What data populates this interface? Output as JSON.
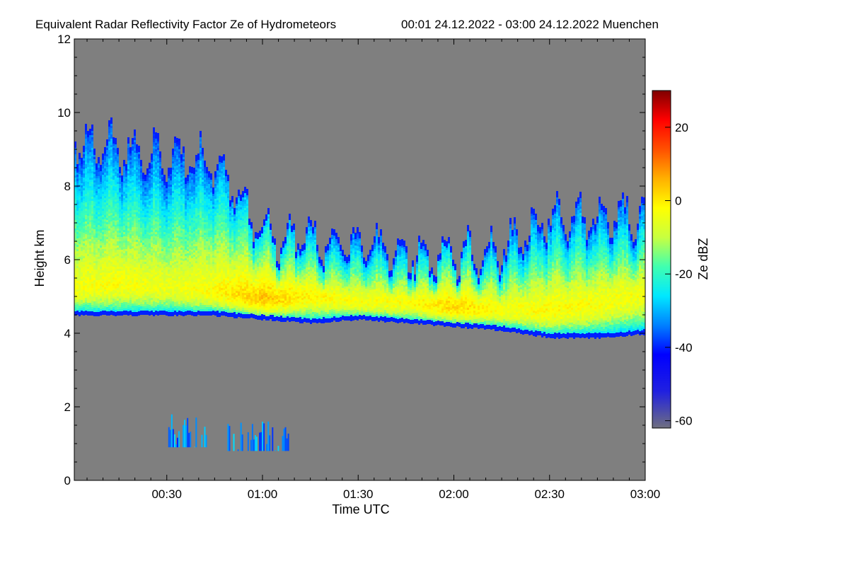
{
  "chart_data": {
    "type": "heatmap",
    "title": "Equivalent Radar Reflectivity Factor Ze of Hydrometeors",
    "subtitle": "00:01 24.12.2022 - 03:00 24.12.2022 Muenchen",
    "xlabel": "Time UTC",
    "ylabel": "Height km",
    "xlim_minutes": [
      1,
      180
    ],
    "ylim_km": [
      0,
      12
    ],
    "x_ticks": [
      {
        "minutes": 30,
        "label": "00:30"
      },
      {
        "minutes": 60,
        "label": "01:00"
      },
      {
        "minutes": 90,
        "label": "01:30"
      },
      {
        "minutes": 120,
        "label": "02:00"
      },
      {
        "minutes": 150,
        "label": "02:30"
      },
      {
        "minutes": 180,
        "label": "03:00"
      }
    ],
    "y_ticks": [
      {
        "km": 0,
        "label": "0"
      },
      {
        "km": 2,
        "label": "2"
      },
      {
        "km": 4,
        "label": "4"
      },
      {
        "km": 6,
        "label": "6"
      },
      {
        "km": 8,
        "label": "8"
      },
      {
        "km": 10,
        "label": "10"
      },
      {
        "km": 12,
        "label": "12"
      }
    ],
    "background_color": "#7f7f7f",
    "colorbar": {
      "label": "Ze dBZ",
      "range": [
        -62,
        30
      ],
      "ticks": [
        {
          "value": 20,
          "label": "20"
        },
        {
          "value": 0,
          "label": "0"
        },
        {
          "value": -20,
          "label": "-20"
        },
        {
          "value": -40,
          "label": "-40"
        },
        {
          "value": -60,
          "label": "-60"
        }
      ],
      "stops": [
        {
          "value": -62,
          "color": "#6f6f7f"
        },
        {
          "value": -52,
          "color": "#2020e0"
        },
        {
          "value": -42,
          "color": "#0000ff"
        },
        {
          "value": -34,
          "color": "#0080ff"
        },
        {
          "value": -26,
          "color": "#00e8ff"
        },
        {
          "value": -18,
          "color": "#40ffb0"
        },
        {
          "value": -10,
          "color": "#c8ff40"
        },
        {
          "value": -2,
          "color": "#ffff00"
        },
        {
          "value": 6,
          "color": "#ffb000"
        },
        {
          "value": 14,
          "color": "#ff5000"
        },
        {
          "value": 22,
          "color": "#ff0000"
        },
        {
          "value": 30,
          "color": "#7f0000"
        }
      ]
    },
    "layers": [
      {
        "name": "main-ice-cloud",
        "time_minutes": [
          1,
          15,
          30,
          45,
          60,
          75,
          90,
          105,
          120,
          135,
          150,
          165,
          180
        ],
        "base_km": [
          4.5,
          4.5,
          4.5,
          4.5,
          4.4,
          4.3,
          4.4,
          4.3,
          4.2,
          4.1,
          3.9,
          3.9,
          4.0
        ],
        "top_km": [
          9.6,
          9.3,
          9.2,
          8.9,
          7.0,
          6.8,
          6.7,
          6.5,
          6.4,
          6.6,
          7.5,
          7.4,
          7.6
        ],
        "core_km": [
          5.3,
          5.4,
          5.3,
          5.2,
          5.0,
          5.1,
          4.9,
          4.9,
          4.8,
          4.7,
          4.7,
          4.9,
          5.2
        ],
        "peak_dBZ": [
          -4,
          -3,
          -5,
          -2,
          4,
          -2,
          -3,
          -3,
          2,
          -3,
          -2,
          -3,
          -4
        ]
      }
    ],
    "low_echoes": [
      {
        "start_minutes": 30,
        "end_minutes": 43,
        "base_km": 0.9,
        "top_km": 1.8
      },
      {
        "start_minutes": 49,
        "end_minutes": 68,
        "base_km": 0.8,
        "top_km": 1.6
      }
    ]
  }
}
